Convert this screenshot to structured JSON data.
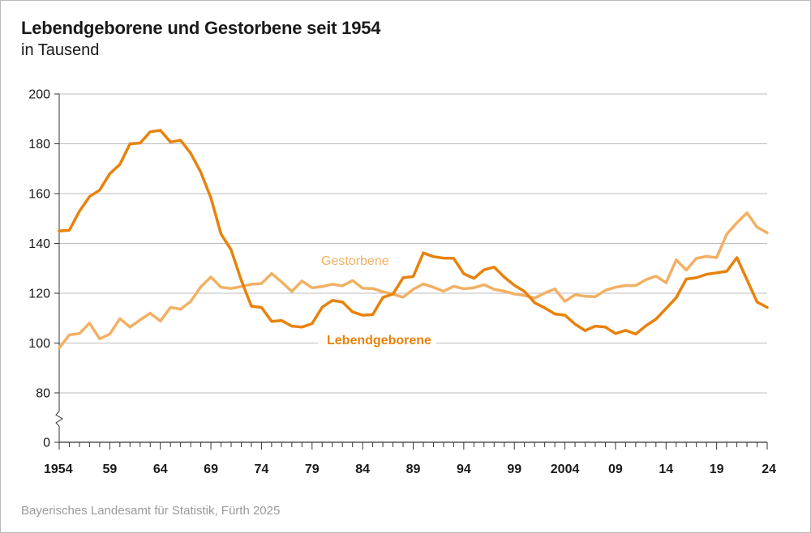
{
  "header": {
    "title": "Lebendgeborene und Gestorbene seit 1954",
    "subtitle": "in Tausend"
  },
  "footer": {
    "source": "Bayerisches Landesamt für Statistik, Fürth 2025"
  },
  "colors": {
    "lebendgeborene": "#e8820c",
    "gestorbene": "#f2b063",
    "grid": "#bdbdbd",
    "axis": "#333333"
  },
  "chart_data": {
    "type": "line",
    "x_range": [
      1954,
      2024
    ],
    "ylim": [
      0,
      200
    ],
    "axis_break": "between 0 and 80",
    "y_ticks": [
      0,
      80,
      100,
      120,
      140,
      160,
      180,
      200
    ],
    "y_tick_labels": [
      "0",
      "80",
      "100",
      "120",
      "140",
      "160",
      "180",
      "200"
    ],
    "x_ticks": [
      1954,
      1959,
      1964,
      1969,
      1974,
      1979,
      1984,
      1989,
      1994,
      1999,
      2004,
      2009,
      2014,
      2019,
      2024
    ],
    "x_tick_labels": [
      "1954",
      "59",
      "64",
      "69",
      "74",
      "79",
      "84",
      "89",
      "94",
      "99",
      "2004",
      "09",
      "14",
      "19",
      "24"
    ],
    "grid": "horizontal",
    "x": [
      1954,
      1955,
      1956,
      1957,
      1958,
      1959,
      1960,
      1961,
      1962,
      1963,
      1964,
      1965,
      1966,
      1967,
      1968,
      1969,
      1970,
      1971,
      1972,
      1973,
      1974,
      1975,
      1976,
      1977,
      1978,
      1979,
      1980,
      1981,
      1982,
      1983,
      1984,
      1985,
      1986,
      1987,
      1988,
      1989,
      1990,
      1991,
      1992,
      1993,
      1994,
      1995,
      1996,
      1997,
      1998,
      1999,
      2000,
      2001,
      2002,
      2003,
      2004,
      2005,
      2006,
      2007,
      2008,
      2009,
      2010,
      2011,
      2012,
      2013,
      2014,
      2015,
      2016,
      2017,
      2018,
      2019,
      2020,
      2021,
      2022,
      2023,
      2024
    ],
    "series": [
      {
        "name": "Lebendgeborene",
        "values": [
          145,
          145.3,
          152.9,
          158.8,
          161.4,
          168,
          171.7,
          180,
          180.3,
          184.8,
          185.4,
          180.7,
          181.4,
          176.2,
          168.6,
          158.2,
          143.8,
          137.4,
          125.2,
          114.8,
          114.3,
          108.7,
          109,
          106.8,
          106.4,
          107.8,
          114.4,
          117.1,
          116.5,
          112.5,
          111.2,
          111.4,
          118.3,
          119.7,
          126.2,
          126.7,
          136.2,
          134.7,
          134.1,
          134,
          127.8,
          126,
          129.4,
          130.5,
          126.5,
          123.2,
          120.7,
          116.2,
          114.1,
          111.7,
          111.2,
          107.6,
          105,
          106.8,
          106.4,
          103.8,
          105.1,
          103.6,
          106.9,
          109.6,
          113.9,
          118.2,
          125.7,
          126.2,
          127.6,
          128.2,
          128.8,
          134.3,
          125.4,
          116.5,
          114.3
        ]
      },
      {
        "name": "Gestorbene",
        "values": [
          98,
          103.3,
          103.8,
          108,
          101.7,
          103.6,
          109.8,
          106.4,
          109.3,
          112,
          108.8,
          114.3,
          113.6,
          116.7,
          122.6,
          126.5,
          122.4,
          121.9,
          122.7,
          123.6,
          123.9,
          127.9,
          124.5,
          120.7,
          124.9,
          122.2,
          122.7,
          123.6,
          123,
          125.1,
          122,
          121.9,
          120.6,
          119.6,
          118.4,
          121.6,
          123.7,
          122.4,
          120.8,
          122.8,
          121.8,
          122.2,
          123.4,
          121.6,
          120.8,
          119.7,
          119.1,
          118,
          120.1,
          121.7,
          116.7,
          119.4,
          118.8,
          118.6,
          121.2,
          122.4,
          123.1,
          123.1,
          125.4,
          126.9,
          124.2,
          133.4,
          129.3,
          134,
          134.8,
          134.3,
          143.7,
          148.3,
          152.3,
          146.5,
          144.3
        ]
      }
    ]
  }
}
